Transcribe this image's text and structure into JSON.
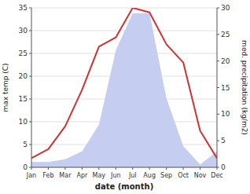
{
  "chart_data": {
    "type": "line",
    "xlabel": "date (month)",
    "ylabel": "max temp (C)",
    "y2label": "med. precipitation (kg/m2)",
    "categories": [
      "Jan",
      "Feb",
      "Mar",
      "Apr",
      "May",
      "Jun",
      "Jul",
      "Aug",
      "Sep",
      "Oct",
      "Nov",
      "Dec"
    ],
    "series": [
      {
        "type": "area",
        "axis": "y2",
        "color": "#c5cef0",
        "values": [
          1.0,
          1.0,
          1.5,
          3.0,
          8.0,
          22.0,
          29.0,
          29.0,
          13.0,
          4.0,
          0.5,
          3.0
        ]
      },
      {
        "type": "line",
        "color": "#cc3333",
        "values": [
          2.0,
          4.0,
          9.0,
          17.0,
          26.5,
          28.5,
          35.0,
          34.0,
          27.0,
          23.0,
          8.0,
          2.0
        ]
      }
    ],
    "ylim": [
      0,
      35
    ],
    "yticks": [
      0,
      5,
      10,
      15,
      20,
      25,
      30,
      35
    ],
    "y2lim": [
      0,
      30
    ],
    "y2ticks": [
      0,
      5,
      10,
      15,
      20,
      25,
      30
    ],
    "grid": true
  }
}
